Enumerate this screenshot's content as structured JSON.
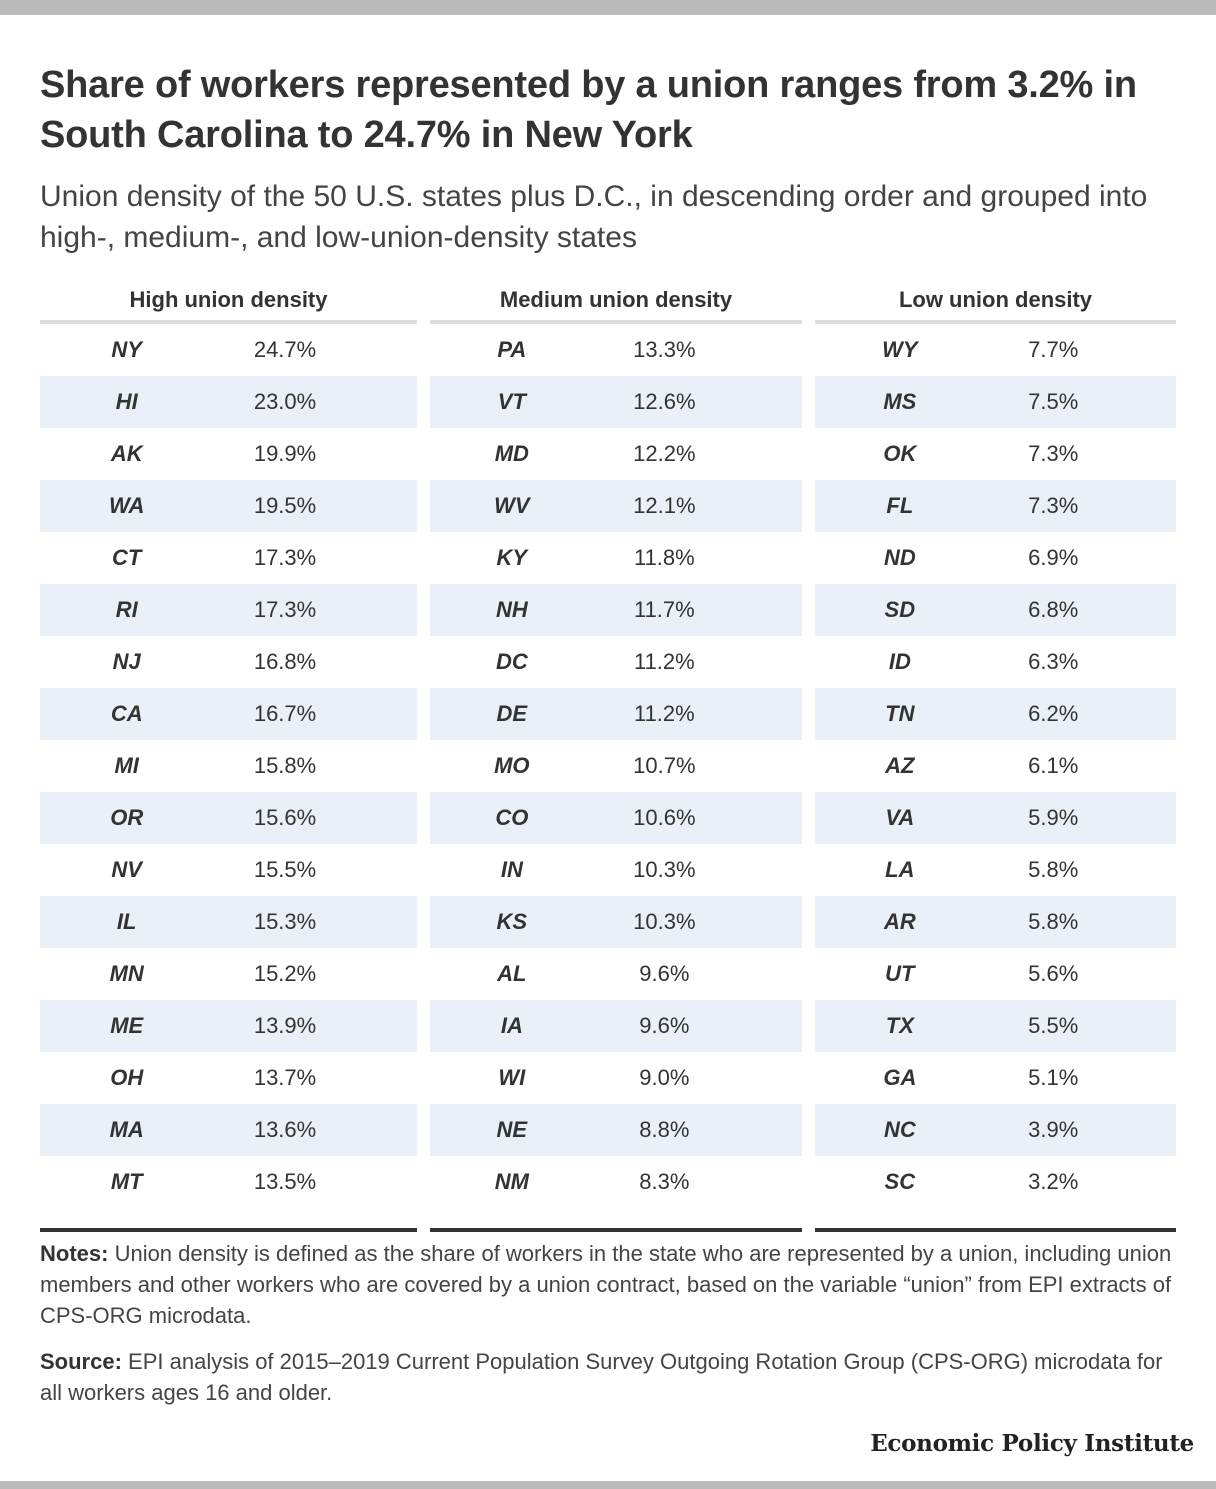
{
  "title": "Share of workers represented by a union ranges from 3.2% in South Carolina to 24.7% in New York",
  "subtitle": "Union density of the 50 U.S. states plus D.C., in descending order and grouped into high-, medium-, and low-union-density states",
  "colors": {
    "stripe": "#eaf0f8",
    "text": "#333333",
    "rule_top": "#dddddd",
    "rule_bottom": "#333333",
    "frame": "#bbbbbb"
  },
  "chart_data": {
    "type": "table",
    "title": "Share of workers represented by a union ranges from 3.2% in South Carolina to 24.7% in New York",
    "groups": [
      {
        "header": "High union density",
        "rows": [
          {
            "state": "NY",
            "value": "24.7%"
          },
          {
            "state": "HI",
            "value": "23.0%"
          },
          {
            "state": "AK",
            "value": "19.9%"
          },
          {
            "state": "WA",
            "value": "19.5%"
          },
          {
            "state": "CT",
            "value": "17.3%"
          },
          {
            "state": "RI",
            "value": "17.3%"
          },
          {
            "state": "NJ",
            "value": "16.8%"
          },
          {
            "state": "CA",
            "value": "16.7%"
          },
          {
            "state": "MI",
            "value": "15.8%"
          },
          {
            "state": "OR",
            "value": "15.6%"
          },
          {
            "state": "NV",
            "value": "15.5%"
          },
          {
            "state": "IL",
            "value": "15.3%"
          },
          {
            "state": "MN",
            "value": "15.2%"
          },
          {
            "state": "ME",
            "value": "13.9%"
          },
          {
            "state": "OH",
            "value": "13.7%"
          },
          {
            "state": "MA",
            "value": "13.6%"
          },
          {
            "state": "MT",
            "value": "13.5%"
          }
        ]
      },
      {
        "header": "Medium union density",
        "rows": [
          {
            "state": "PA",
            "value": "13.3%"
          },
          {
            "state": "VT",
            "value": "12.6%"
          },
          {
            "state": "MD",
            "value": "12.2%"
          },
          {
            "state": "WV",
            "value": "12.1%"
          },
          {
            "state": "KY",
            "value": "11.8%"
          },
          {
            "state": "NH",
            "value": "11.7%"
          },
          {
            "state": "DC",
            "value": "11.2%"
          },
          {
            "state": "DE",
            "value": "11.2%"
          },
          {
            "state": "MO",
            "value": "10.7%"
          },
          {
            "state": "CO",
            "value": "10.6%"
          },
          {
            "state": "IN",
            "value": "10.3%"
          },
          {
            "state": "KS",
            "value": "10.3%"
          },
          {
            "state": "AL",
            "value": "9.6%"
          },
          {
            "state": "IA",
            "value": "9.6%"
          },
          {
            "state": "WI",
            "value": "9.0%"
          },
          {
            "state": "NE",
            "value": "8.8%"
          },
          {
            "state": "NM",
            "value": "8.3%"
          }
        ]
      },
      {
        "header": "Low union density",
        "rows": [
          {
            "state": "WY",
            "value": "7.7%"
          },
          {
            "state": "MS",
            "value": "7.5%"
          },
          {
            "state": "OK",
            "value": "7.3%"
          },
          {
            "state": "FL",
            "value": "7.3%"
          },
          {
            "state": "ND",
            "value": "6.9%"
          },
          {
            "state": "SD",
            "value": "6.8%"
          },
          {
            "state": "ID",
            "value": "6.3%"
          },
          {
            "state": "TN",
            "value": "6.2%"
          },
          {
            "state": "AZ",
            "value": "6.1%"
          },
          {
            "state": "VA",
            "value": "5.9%"
          },
          {
            "state": "LA",
            "value": "5.8%"
          },
          {
            "state": "AR",
            "value": "5.8%"
          },
          {
            "state": "UT",
            "value": "5.6%"
          },
          {
            "state": "TX",
            "value": "5.5%"
          },
          {
            "state": "GA",
            "value": "5.1%"
          },
          {
            "state": "NC",
            "value": "3.9%"
          },
          {
            "state": "SC",
            "value": "3.2%"
          }
        ]
      }
    ]
  },
  "notes": {
    "label": "Notes:",
    "text": " Union density is defined as the share of workers in the state who are represented by a union, including union members and other workers who are covered by a union contract, based on the variable “union” from EPI extracts of CPS-ORG microdata."
  },
  "source": {
    "label": "Source:",
    "text": " EPI analysis of 2015–2019 Current Population Survey Outgoing Rotation Group (CPS-ORG) microdata for all workers ages 16 and older."
  },
  "brand": "Economic Policy Institute"
}
